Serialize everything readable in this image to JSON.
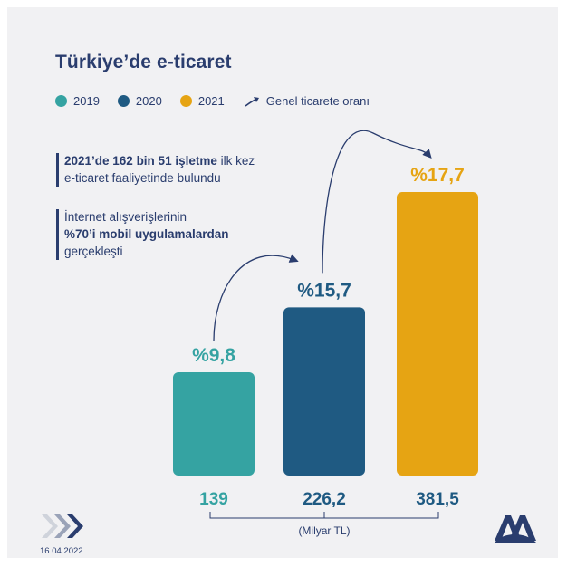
{
  "title": "Türkiye’de e-ticaret",
  "legend": {
    "items": [
      {
        "label": "2019",
        "color": "#35a3a2"
      },
      {
        "label": "2020",
        "color": "#1f5a82"
      },
      {
        "label": "2021",
        "color": "#e6a413"
      }
    ],
    "arrow_label": "Genel ticarete oranı"
  },
  "notes": {
    "note1": {
      "bold": "2021’de 162 bin 51 işletme",
      "rest_line1": " ilk kez",
      "line2": "e-ticaret faaliyetinde bulundu"
    },
    "note2": {
      "line1": "İnternet alışverişlerinin",
      "bold": "%70’i mobil uygulamalardan",
      "line3": "gerçekleşti"
    }
  },
  "chart_data": {
    "type": "bar",
    "categories": [
      "2019",
      "2020",
      "2021"
    ],
    "values": [
      139,
      226.2,
      381.5
    ],
    "value_labels": [
      "139",
      "226,2",
      "381,5"
    ],
    "share_labels": [
      "%9,8",
      "%15,7",
      "%17,7"
    ],
    "share_values": [
      9.8,
      15.7,
      17.7
    ],
    "unit_label": "(Milyar TL)",
    "colors": [
      "#35a3a2",
      "#1f5a82",
      "#e6a413"
    ],
    "ylim": [
      0,
      381.5
    ]
  },
  "footer": {
    "date": "16.04.2022",
    "logo_text": "AA"
  }
}
